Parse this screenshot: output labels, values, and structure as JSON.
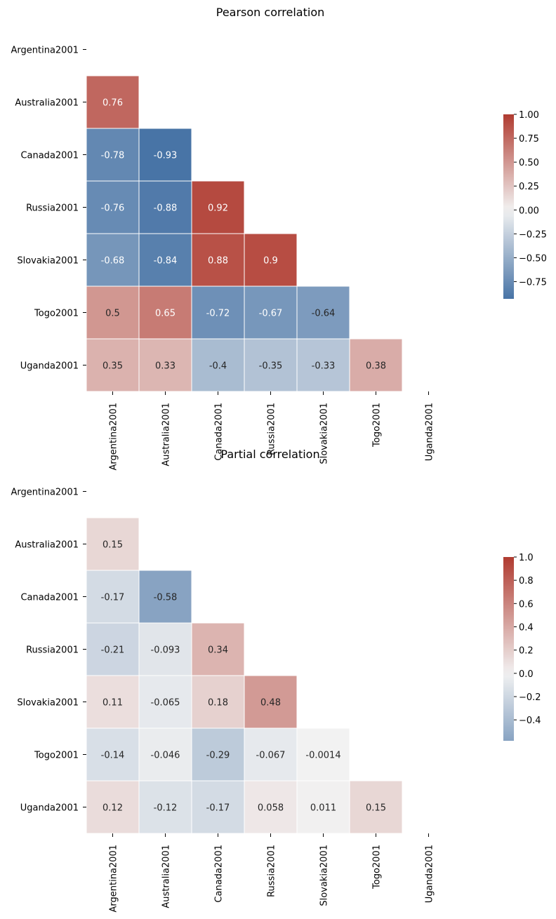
{
  "chart_data": [
    {
      "type": "heatmap",
      "title": "Pearson correlation",
      "mask": "lower-triangle",
      "variables": [
        "Argentina2001",
        "Australia2001",
        "Canada2001",
        "Russia2001",
        "Slovakia2001",
        "Togo2001",
        "Uganda2001"
      ],
      "rows": [
        {
          "row": "Australia2001",
          "values": [
            0.76
          ]
        },
        {
          "row": "Canada2001",
          "values": [
            -0.78,
            -0.93
          ]
        },
        {
          "row": "Russia2001",
          "values": [
            -0.76,
            -0.88,
            0.92
          ]
        },
        {
          "row": "Slovakia2001",
          "values": [
            -0.68,
            -0.84,
            0.88,
            0.9
          ]
        },
        {
          "row": "Togo2001",
          "values": [
            0.5,
            0.65,
            -0.72,
            -0.67,
            -0.64
          ]
        },
        {
          "row": "Uganda2001",
          "values": [
            0.35,
            0.33,
            -0.4,
            -0.35,
            -0.33,
            0.38
          ]
        }
      ],
      "value_labels": [
        [
          "0.76"
        ],
        [
          "-0.78",
          "-0.93"
        ],
        [
          "-0.76",
          "-0.88",
          "0.92"
        ],
        [
          "-0.68",
          "-0.84",
          "0.88",
          "0.9"
        ],
        [
          "0.5",
          "0.65",
          "-0.72",
          "-0.67",
          "-0.64"
        ],
        [
          "0.35",
          "0.33",
          "-0.4",
          "-0.35",
          "-0.33",
          "0.38"
        ]
      ],
      "colorbar": {
        "range": [
          -0.93,
          1.0
        ],
        "ticks": [
          1.0,
          0.75,
          0.5,
          0.25,
          0.0,
          -0.25,
          -0.5,
          -0.75
        ],
        "tick_labels": [
          "1.00",
          "0.75",
          "0.50",
          "0.25",
          "0.00",
          "−0.25",
          "−0.50",
          "−0.75"
        ]
      },
      "colormap": {
        "negative": "#3b6aa0",
        "center": "#f2f2f2",
        "positive": "#b03b30"
      }
    },
    {
      "type": "heatmap",
      "title": "Partial correlation",
      "mask": "lower-triangle",
      "variables": [
        "Argentina2001",
        "Australia2001",
        "Canada2001",
        "Russia2001",
        "Slovakia2001",
        "Togo2001",
        "Uganda2001"
      ],
      "rows": [
        {
          "row": "Australia2001",
          "values": [
            0.15
          ]
        },
        {
          "row": "Canada2001",
          "values": [
            -0.17,
            -0.58
          ]
        },
        {
          "row": "Russia2001",
          "values": [
            -0.21,
            -0.093,
            0.34
          ]
        },
        {
          "row": "Slovakia2001",
          "values": [
            0.11,
            -0.065,
            0.18,
            0.48
          ]
        },
        {
          "row": "Togo2001",
          "values": [
            -0.14,
            -0.046,
            -0.29,
            -0.067,
            -0.0014
          ]
        },
        {
          "row": "Uganda2001",
          "values": [
            0.12,
            -0.12,
            -0.17,
            0.058,
            0.011,
            0.15
          ]
        }
      ],
      "value_labels": [
        [
          "0.15"
        ],
        [
          "-0.17",
          "-0.58"
        ],
        [
          "-0.21",
          "-0.093",
          "0.34"
        ],
        [
          "0.11",
          "-0.065",
          "0.18",
          "0.48"
        ],
        [
          "-0.14",
          "-0.046",
          "-0.29",
          "-0.067",
          "-0.0014"
        ],
        [
          "0.12",
          "-0.12",
          "-0.17",
          "0.058",
          "0.011",
          "0.15"
        ]
      ],
      "colorbar": {
        "range": [
          -0.58,
          1.0
        ],
        "ticks": [
          1.0,
          0.8,
          0.6,
          0.4,
          0.2,
          0.0,
          -0.2,
          -0.4
        ],
        "tick_labels": [
          "1.0",
          "0.8",
          "0.6",
          "0.4",
          "0.2",
          "0.0",
          "−0.2",
          "−0.4"
        ]
      },
      "colormap": {
        "negative": "#3b6aa0",
        "center": "#f2f2f2",
        "positive": "#b03b30"
      }
    }
  ]
}
